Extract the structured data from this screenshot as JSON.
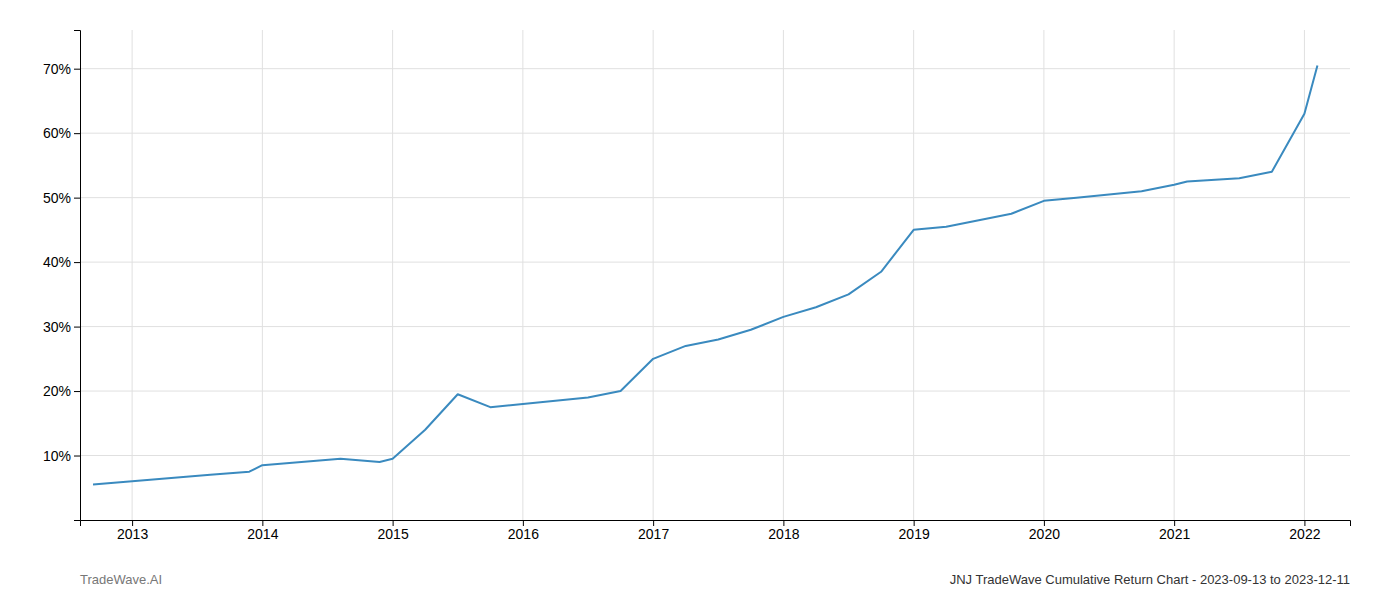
{
  "chart_data": {
    "type": "line",
    "x": [
      2012.7,
      2013.0,
      2013.3,
      2013.6,
      2013.9,
      2014.0,
      2014.3,
      2014.6,
      2014.9,
      2015.0,
      2015.25,
      2015.5,
      2015.75,
      2016.0,
      2016.25,
      2016.5,
      2016.75,
      2017.0,
      2017.25,
      2017.5,
      2017.75,
      2018.0,
      2018.25,
      2018.5,
      2018.75,
      2019.0,
      2019.25,
      2019.5,
      2019.75,
      2020.0,
      2020.25,
      2020.5,
      2020.75,
      2021.0,
      2021.1,
      2021.5,
      2021.75,
      2022.0,
      2022.1
    ],
    "values": [
      5.5,
      6.0,
      6.5,
      7.0,
      7.5,
      8.5,
      9.0,
      9.5,
      9.0,
      9.5,
      14.0,
      19.5,
      17.5,
      18.0,
      18.5,
      19.0,
      20.0,
      25.0,
      27.0,
      28.0,
      29.5,
      31.5,
      33.0,
      35.0,
      38.5,
      45.0,
      45.5,
      46.5,
      47.5,
      49.5,
      50.0,
      50.5,
      51.0,
      52.0,
      52.5,
      53.0,
      54.0,
      63.0,
      70.5
    ],
    "color": "#3a8abf",
    "xlim": [
      2012.6,
      2022.35
    ],
    "ylim": [
      0,
      76
    ],
    "xticks": [
      2013,
      2014,
      2015,
      2016,
      2017,
      2018,
      2019,
      2020,
      2021,
      2022
    ],
    "yticks": [
      {
        "value": 10,
        "label": "10%"
      },
      {
        "value": 20,
        "label": "20%"
      },
      {
        "value": 30,
        "label": "30%"
      },
      {
        "value": 40,
        "label": "40%"
      },
      {
        "value": 50,
        "label": "50%"
      },
      {
        "value": 60,
        "label": "60%"
      },
      {
        "value": 70,
        "label": "70%"
      }
    ],
    "grid": true,
    "annotations": [
      "TradeWave.AI",
      "JNJ TradeWave Cumulative Return Chart - 2023-09-13 to 2023-12-11"
    ]
  }
}
